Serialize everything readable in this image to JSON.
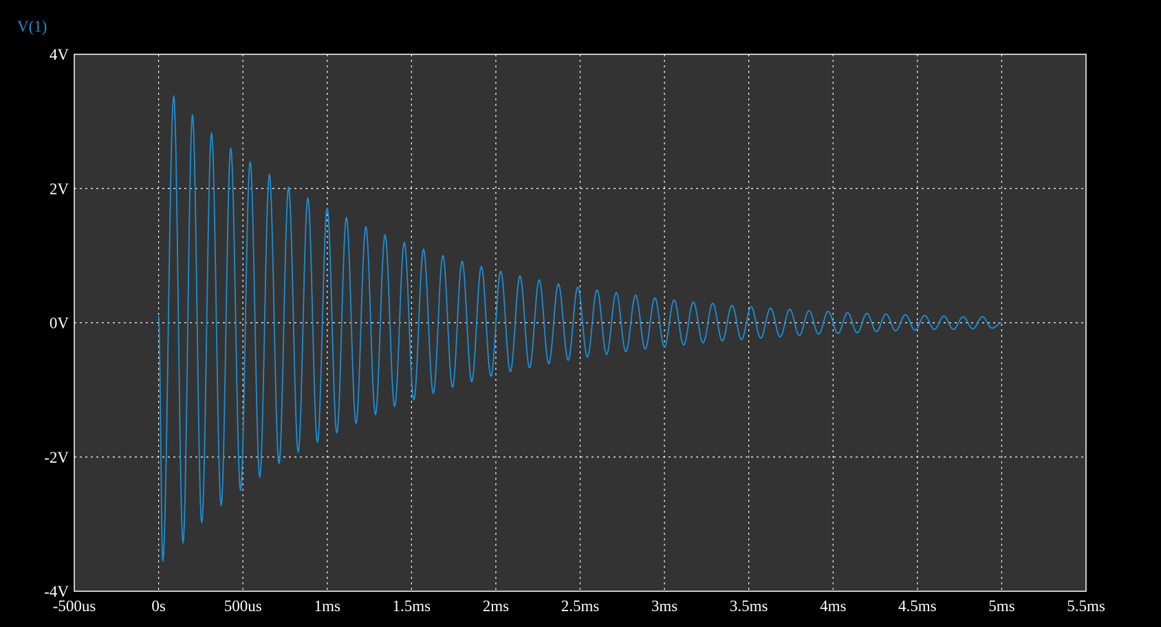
{
  "chart_data": {
    "type": "line",
    "title": "",
    "xlabel": "",
    "ylabel": "",
    "xlim": [
      -0.0005,
      0.0055
    ],
    "ylim": [
      -4,
      4
    ],
    "x_ticks": [
      {
        "value": -0.0005,
        "label": "-500us"
      },
      {
        "value": 0,
        "label": "0s"
      },
      {
        "value": 0.0005,
        "label": "500us"
      },
      {
        "value": 0.001,
        "label": "1ms"
      },
      {
        "value": 0.0015,
        "label": "1.5ms"
      },
      {
        "value": 0.002,
        "label": "2ms"
      },
      {
        "value": 0.0025,
        "label": "2.5ms"
      },
      {
        "value": 0.003,
        "label": "3ms"
      },
      {
        "value": 0.0035,
        "label": "3.5ms"
      },
      {
        "value": 0.004,
        "label": "4ms"
      },
      {
        "value": 0.0045,
        "label": "4.5ms"
      },
      {
        "value": 0.005,
        "label": "5ms"
      },
      {
        "value": 0.0055,
        "label": "5.5ms"
      }
    ],
    "y_ticks": [
      {
        "value": 4,
        "label": "4V"
      },
      {
        "value": 2,
        "label": "2V"
      },
      {
        "value": 0,
        "label": "0V"
      },
      {
        "value": -2,
        "label": "-2V"
      },
      {
        "value": -4,
        "label": "-4V"
      }
    ],
    "grid": true,
    "series": [
      {
        "name": "V(1)",
        "color": "#1a8fd6",
        "x": [
          0,
          2.5e-05,
          9e-05,
          0.000145,
          0.000201,
          0.000256,
          0.000314,
          0.000371,
          0.000428,
          0.000486,
          0.000543,
          0.0006,
          0.000657,
          0.000714,
          0.000771,
          0.000828,
          0.000885,
          0.000942,
          0.001,
          0.001057,
          0.001114,
          0.001171,
          0.001229,
          0.001286,
          0.001343,
          0.0014,
          0.001457,
          0.001514,
          0.001571,
          0.001629,
          0.001686,
          0.001743,
          0.0018,
          0.001857,
          0.001914,
          0.001971,
          0.002029,
          0.002086,
          0.002143,
          0.0022,
          0.002257,
          0.002314,
          0.002371,
          0.002429,
          0.002486,
          0.002543,
          0.0026,
          0.002657,
          0.002714,
          0.002771,
          0.002829,
          0.002886,
          0.002943,
          0.003,
          0.003057,
          0.003114,
          0.003171,
          0.003229,
          0.003286,
          0.003343,
          0.0034,
          0.003457,
          0.003514,
          0.003571,
          0.003629,
          0.003686,
          0.003743,
          0.0038,
          0.003857,
          0.003914,
          0.003971,
          0.004029,
          0.004086,
          0.004143,
          0.0042,
          0.004257,
          0.004314,
          0.004371,
          0.004429,
          0.004486,
          0.004543,
          0.0046,
          0.004657,
          0.004714,
          0.004771,
          0.004829,
          0.004886,
          0.004943,
          0.005
        ],
        "values": [
          0.1,
          -3.55,
          3.38,
          -3.28,
          3.1,
          -2.98,
          2.83,
          -2.72,
          2.6,
          -2.5,
          2.4,
          -2.3,
          2.21,
          -2.1,
          2.02,
          -1.93,
          1.86,
          -1.78,
          1.71,
          -1.64,
          1.57,
          -1.5,
          1.43,
          -1.37,
          1.31,
          -1.25,
          1.2,
          -1.15,
          1.1,
          -1.05,
          1.0,
          -0.96,
          0.92,
          -0.88,
          0.84,
          -0.8,
          0.77,
          -0.73,
          0.7,
          -0.67,
          0.64,
          -0.61,
          0.58,
          -0.56,
          0.53,
          -0.51,
          0.49,
          -0.47,
          0.45,
          -0.43,
          0.41,
          -0.39,
          0.37,
          -0.36,
          0.34,
          -0.33,
          0.31,
          -0.3,
          0.29,
          -0.27,
          0.26,
          -0.25,
          0.24,
          -0.23,
          0.22,
          -0.21,
          0.2,
          -0.19,
          0.18,
          -0.17,
          0.17,
          -0.16,
          0.15,
          -0.15,
          0.14,
          -0.13,
          0.13,
          -0.12,
          0.12,
          -0.11,
          0.11,
          -0.1,
          0.1,
          -0.1,
          0.09,
          -0.09,
          0.09,
          -0.08,
          0.0
        ]
      }
    ]
  }
}
